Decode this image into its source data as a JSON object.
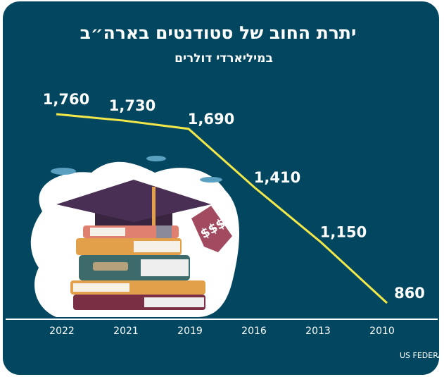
{
  "chart_data": {
    "type": "line",
    "title": "יתרת החוב של סטודנטים בארה״ב",
    "subtitle": "במיליארדי דולרים",
    "categories": [
      "2022",
      "2021",
      "2019",
      "2016",
      "2013",
      "2010"
    ],
    "values": [
      1760,
      1730,
      1690,
      1410,
      1150,
      860
    ],
    "value_labels": [
      "1,760",
      "1,730",
      "1,690",
      "1,410",
      "1,150",
      "860"
    ],
    "color": "#f3e84a",
    "source": "מקור: US FEDERAL RESERVE"
  }
}
